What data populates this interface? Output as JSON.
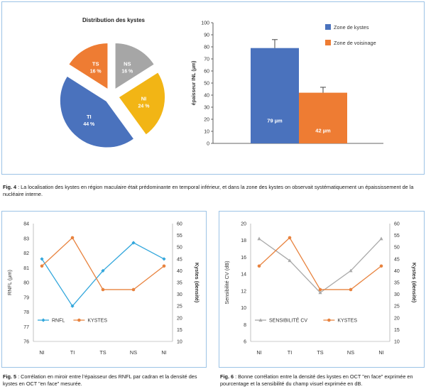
{
  "fig4": {
    "caption_label": "Fig. 4",
    "caption_text": " : La localisation des kystes en région maculaire était prédominante en temporal inférieur, et dans la zone des kystes on observait systématiquement un épaississement de la nucléaire interne."
  },
  "fig5": {
    "caption_label": "Fig. 5",
    "caption_text": " : Corrélation en miroir entre l’épaisseur des RNFL par cadran et la densité des kystes en OCT \"en face\" mesurée."
  },
  "fig6": {
    "caption_label": "Fig. 6",
    "caption_text": " : Bonne corrélation entre la densité des kystes en OCT \"en face\" exprimée en pourcentage et la sensibilité du champ visuel exprimée en dB."
  },
  "colors": {
    "blue": "#4a72bd",
    "orange": "#ee7c33",
    "gray": "#a6a6a6",
    "yellow": "#f2b515",
    "cyan": "#33a7dc",
    "line_orange": "#e8833f",
    "line_gray": "#a9a9a9",
    "panel_border": "#9cc3e6"
  },
  "chart_data": [
    {
      "type": "pie",
      "title": "Distribution des kystes",
      "labels": [
        "TI",
        "TS",
        "NS",
        "NI"
      ],
      "values": [
        44,
        16,
        16,
        24
      ],
      "slice_labels": [
        "TI\n44 %",
        "TS\n16 %",
        "NS\n16 %",
        "NI\n24 %"
      ],
      "colors": [
        "#4a72bd",
        "#ee7c33",
        "#a6a6a6",
        "#f2b515"
      ],
      "exploded": true
    },
    {
      "type": "bar",
      "categories": [
        "Zone de kystes",
        "Zone de voisinage"
      ],
      "values": [
        79,
        42
      ],
      "errors": [
        7,
        4.5
      ],
      "data_labels": [
        "79 µm",
        "42 µm"
      ],
      "colors": [
        "#4a72bd",
        "#ee7c33"
      ],
      "ylabel": "épaisseur INL (µm)",
      "ylim": [
        0,
        100
      ],
      "yticks": [
        "0",
        "10",
        "20",
        "30",
        "40",
        "50",
        "60",
        "70",
        "80",
        "90",
        "100"
      ],
      "legend": [
        "Zone de kystes",
        "Zone de voisinage"
      ],
      "legend_position": "top-right"
    },
    {
      "type": "line",
      "categories": [
        "NI",
        "TI",
        "TS",
        "NS",
        "NI"
      ],
      "series": [
        {
          "name": "RNFL",
          "axis": "left",
          "values": [
            81.6,
            78.4,
            80.8,
            82.7,
            81.6
          ],
          "color": "#33a7dc",
          "marker": "diamond"
        },
        {
          "name": "KYSTES",
          "axis": "right",
          "values": [
            42,
            54,
            32,
            32,
            42
          ],
          "color": "#e8833f",
          "marker": "circle"
        }
      ],
      "ylabel": "RNFL (µm)",
      "ylim": [
        76,
        84
      ],
      "yticks": [
        "76",
        "77",
        "78",
        "79",
        "80",
        "81",
        "82",
        "83",
        "84"
      ],
      "y2label": "Kystes (densité)",
      "y2lim": [
        10,
        60
      ],
      "y2ticks": [
        "10",
        "15",
        "20",
        "25",
        "30",
        "35",
        "40",
        "45",
        "50",
        "55",
        "60"
      ],
      "legend_position": "bottom-left"
    },
    {
      "type": "line",
      "categories": [
        "NI",
        "TI",
        "TS",
        "NS",
        "NI"
      ],
      "series": [
        {
          "name": "SENSIBILITÉ CV",
          "axis": "left",
          "values": [
            18.2,
            15.6,
            11.8,
            14.4,
            18.2
          ],
          "color": "#a9a9a9",
          "marker": "triangle"
        },
        {
          "name": "KYSTES",
          "axis": "right",
          "values": [
            42,
            54,
            32,
            32,
            42
          ],
          "color": "#e8833f",
          "marker": "circle"
        }
      ],
      "ylabel": "Sensibilité CV (dB)",
      "ylim": [
        6,
        20
      ],
      "yticks": [
        "6",
        "8",
        "10",
        "12",
        "14",
        "16",
        "18",
        "20"
      ],
      "y2label": "Kystes (densité)",
      "y2lim": [
        10,
        60
      ],
      "y2ticks": [
        "10",
        "15",
        "20",
        "25",
        "30",
        "35",
        "40",
        "45",
        "50",
        "55",
        "60"
      ],
      "legend_position": "bottom-left"
    }
  ]
}
